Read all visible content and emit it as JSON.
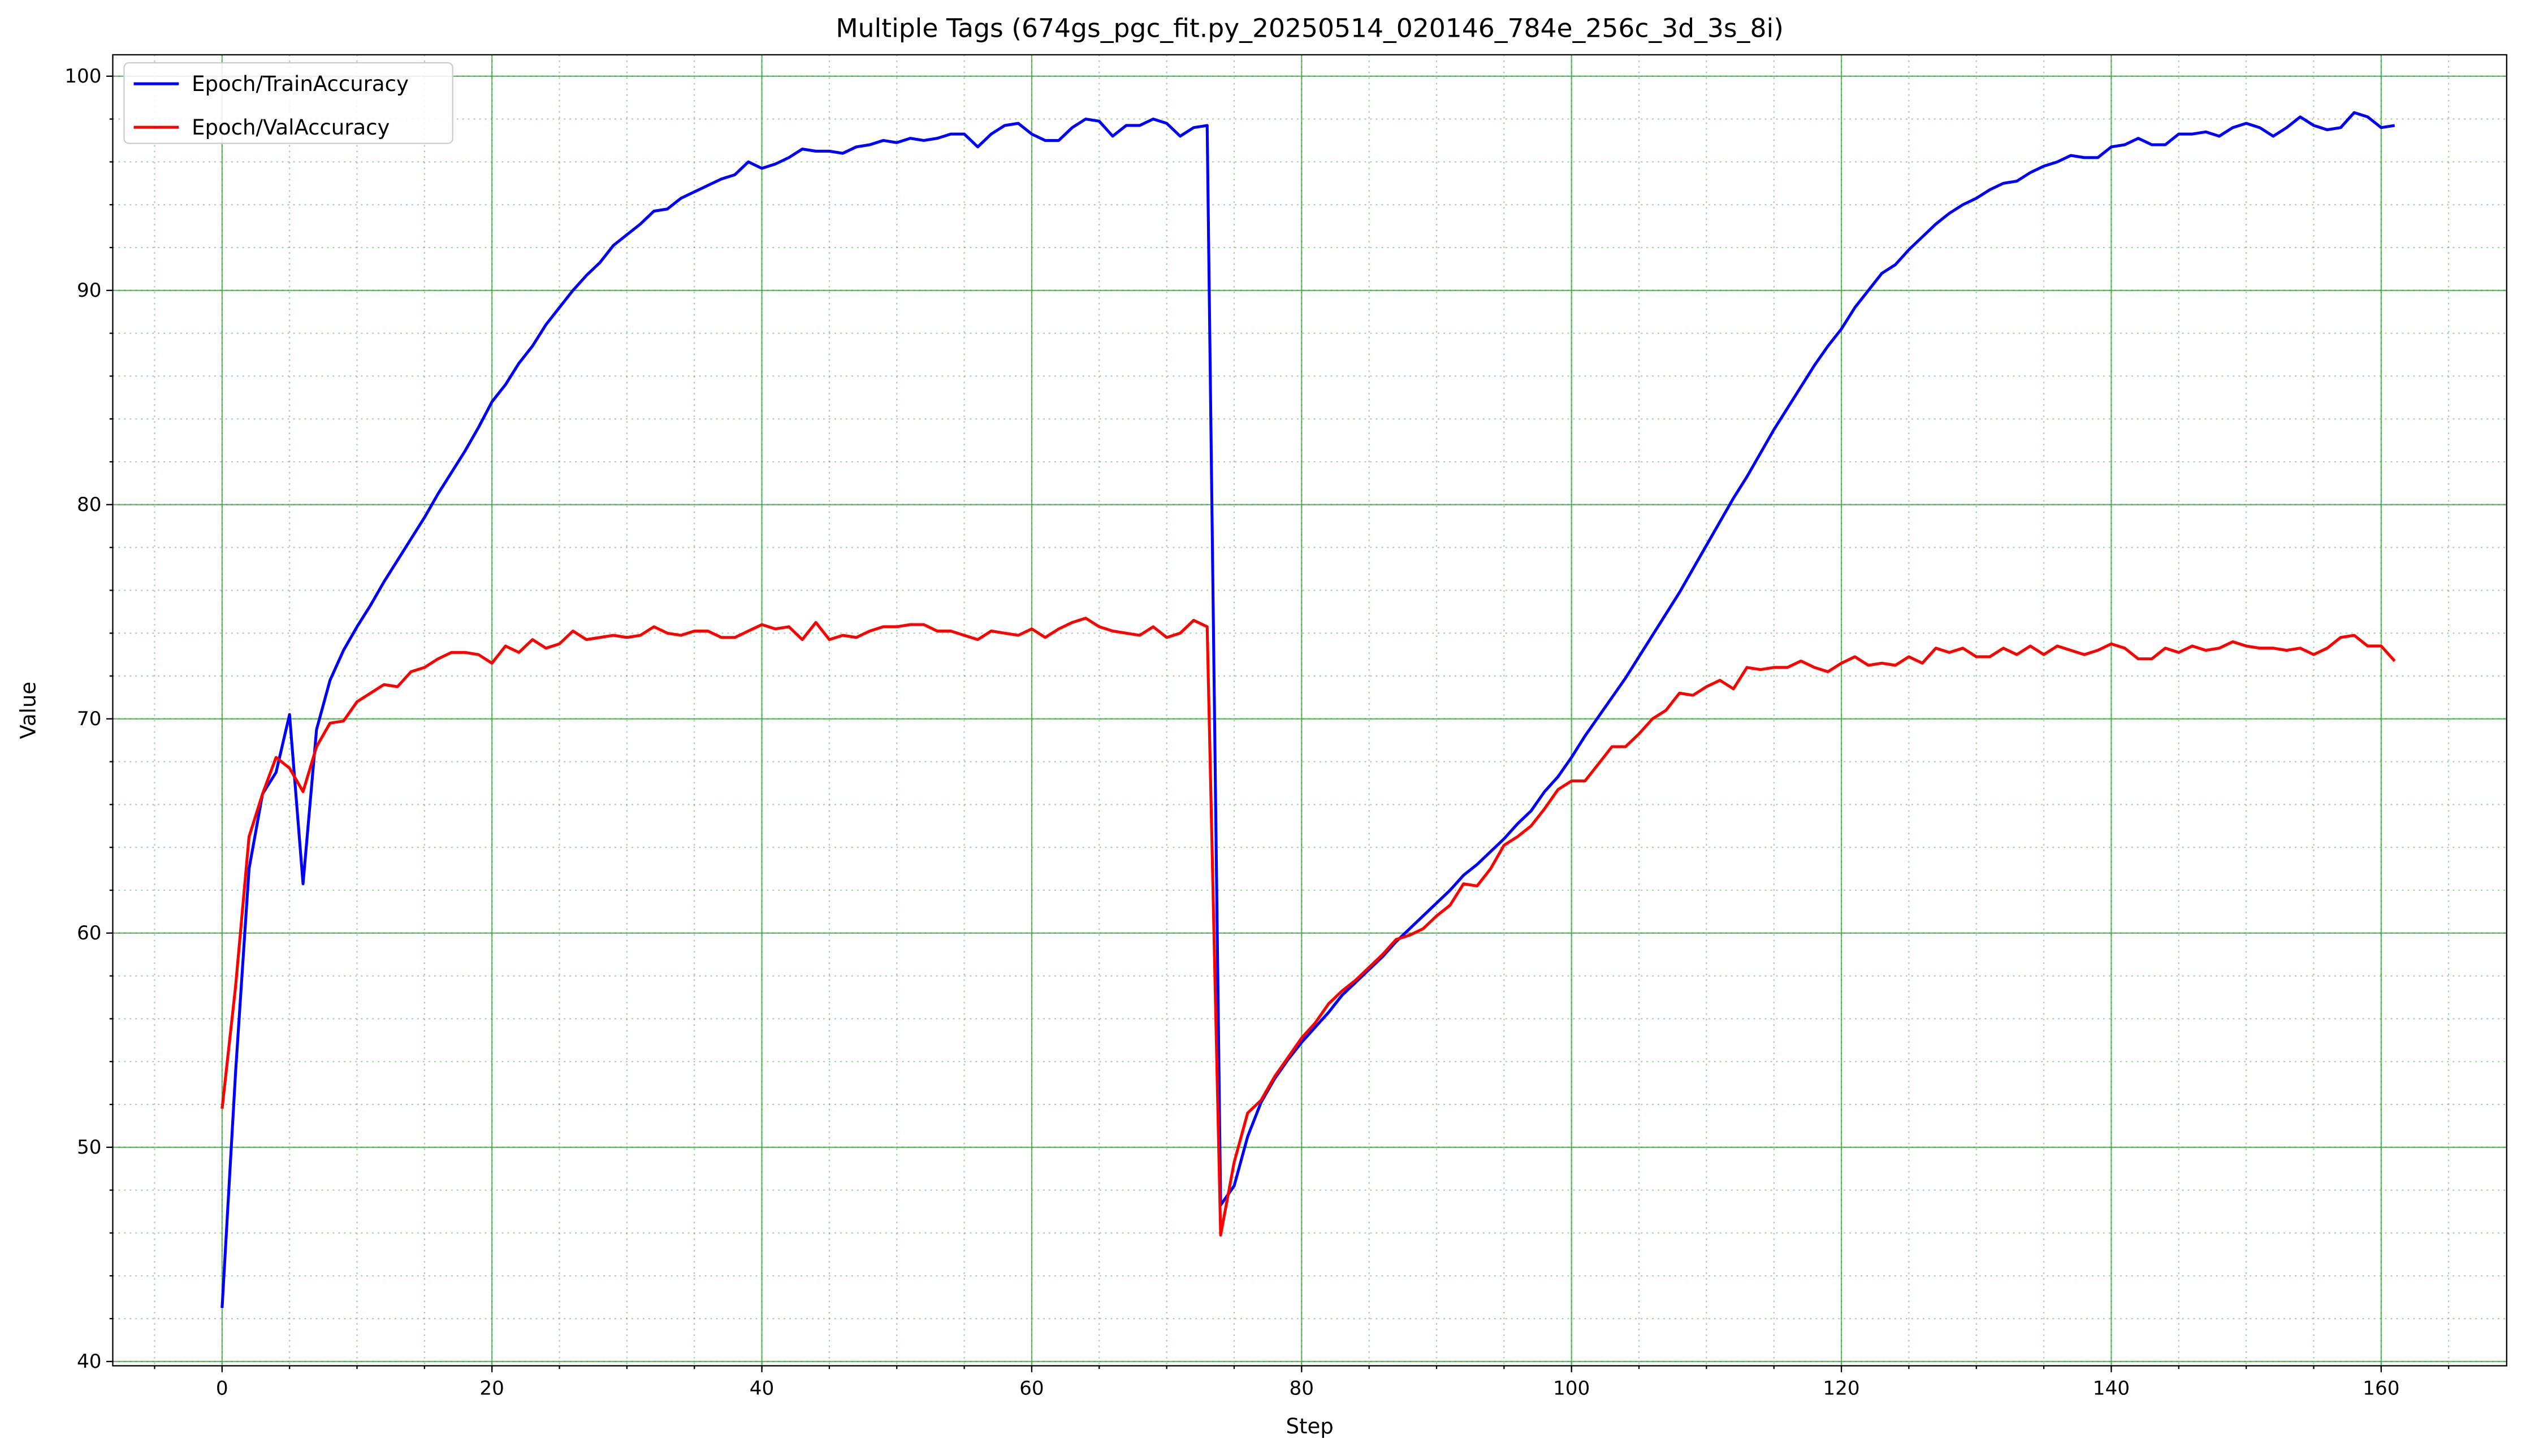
{
  "chart_data": {
    "type": "line",
    "title": "Multiple Tags (674gs_pgc_fit.py_20250514_020146_784e_256c_3d_3s_8i)",
    "x_label": "Step",
    "y_label": "Value",
    "grid": true,
    "minor_grid": true,
    "grid_color": "#2ca02c",
    "legend": "upper left",
    "xlim": [
      -8.1,
      169.3
    ],
    "ylim": [
      39.8,
      101
    ],
    "xticks": [
      0,
      20,
      40,
      60,
      80,
      100,
      120,
      140,
      160
    ],
    "yticks": [
      40,
      50,
      60,
      70,
      80,
      90,
      100
    ],
    "x": [
      0,
      1,
      2,
      3,
      4,
      5,
      6,
      7,
      8,
      9,
      10,
      11,
      12,
      13,
      14,
      15,
      16,
      17,
      18,
      19,
      20,
      21,
      22,
      23,
      24,
      25,
      26,
      27,
      28,
      29,
      30,
      31,
      32,
      33,
      34,
      35,
      36,
      37,
      38,
      39,
      40,
      41,
      42,
      43,
      44,
      45,
      46,
      47,
      48,
      49,
      50,
      51,
      52,
      53,
      54,
      55,
      56,
      57,
      58,
      59,
      60,
      61,
      62,
      63,
      64,
      65,
      66,
      67,
      68,
      69,
      70,
      71,
      72,
      73,
      74,
      75,
      76,
      77,
      78,
      79,
      80,
      81,
      82,
      83,
      84,
      85,
      86,
      87,
      88,
      89,
      90,
      91,
      92,
      93,
      94,
      95,
      96,
      97,
      98,
      99,
      100,
      101,
      102,
      103,
      104,
      105,
      106,
      107,
      108,
      109,
      110,
      111,
      112,
      113,
      114,
      115,
      116,
      117,
      118,
      119,
      120,
      121,
      122,
      123,
      124,
      125,
      126,
      127,
      128,
      129,
      130,
      131,
      132,
      133,
      134,
      135,
      136,
      137,
      138,
      139,
      140,
      141,
      142,
      143,
      144,
      145,
      146,
      147,
      148,
      149,
      150,
      151,
      152,
      153,
      154,
      155,
      156,
      157,
      158,
      159,
      160,
      161
    ],
    "series": [
      {
        "name": "Epoch/TrainAccuracy",
        "color": "#0000ff",
        "values": [
          42.5,
          53.5,
          63,
          66.5,
          67.5,
          70.2,
          62.3,
          69.5,
          71.8,
          73.2,
          74.3,
          75.3,
          76.4,
          77.4,
          78.4,
          79.4,
          80.5,
          81.5,
          82.5,
          83.6,
          84.8,
          85.6,
          86.6,
          87.4,
          88.4,
          89.2,
          90,
          90.7,
          91.3,
          92.1,
          92.6,
          93.1,
          93.7,
          93.8,
          94.3,
          94.6,
          94.9,
          95.2,
          95.4,
          96,
          95.7,
          95.9,
          96.2,
          96.6,
          96.5,
          96.5,
          96.4,
          96.7,
          96.8,
          97,
          96.9,
          97.1,
          97,
          97.1,
          97.3,
          97.3,
          96.7,
          97.3,
          97.7,
          97.8,
          97.3,
          97,
          97,
          97.6,
          98,
          97.9,
          97.2,
          97.7,
          97.7,
          98,
          97.8,
          97.2,
          97.6,
          97.7,
          47.3,
          48.2,
          50.5,
          52.1,
          53.2,
          54.1,
          54.9,
          55.6,
          56.3,
          57.1,
          57.7,
          58.3,
          58.9,
          59.6,
          60.2,
          60.8,
          61.4,
          62,
          62.7,
          63.2,
          63.8,
          64.4,
          65.1,
          65.7,
          66.6,
          67.3,
          68.2,
          69.2,
          70.1,
          71,
          71.9,
          72.9,
          73.9,
          74.9,
          75.9,
          77,
          78.1,
          79.2,
          80.3,
          81.3,
          82.4,
          83.5,
          84.5,
          85.5,
          86.5,
          87.4,
          88.2,
          89.2,
          90,
          90.8,
          91.2,
          91.9,
          92.5,
          93.1,
          93.6,
          94,
          94.3,
          94.7,
          95,
          95.1,
          95.5,
          95.8,
          96,
          96.3,
          96.2,
          96.2,
          96.7,
          96.8,
          97.1,
          96.8,
          96.8,
          97.3,
          97.3,
          97.4,
          97.2,
          97.6,
          97.8,
          97.6,
          97.2,
          97.6,
          98.1,
          97.7,
          97.5,
          97.6,
          98.3,
          98.1,
          97.6,
          97.7
        ]
      },
      {
        "name": "Epoch/ValAccuracy",
        "color": "#ff0000",
        "values": [
          51.8,
          57.5,
          64.5,
          66.5,
          68.2,
          67.7,
          66.6,
          68.7,
          69.8,
          69.9,
          70.8,
          71.2,
          71.6,
          71.5,
          72.2,
          72.4,
          72.8,
          73.1,
          73.1,
          73,
          72.6,
          73.4,
          73.1,
          73.7,
          73.3,
          73.5,
          74.1,
          73.7,
          73.8,
          73.9,
          73.8,
          73.9,
          74.3,
          74,
          73.9,
          74.1,
          74.1,
          73.8,
          73.8,
          74.1,
          74.4,
          74.2,
          74.3,
          73.7,
          74.5,
          73.7,
          73.9,
          73.8,
          74.1,
          74.3,
          74.3,
          74.4,
          74.4,
          74.1,
          74.1,
          73.9,
          73.7,
          74.1,
          74,
          73.9,
          74.2,
          73.8,
          74.2,
          74.5,
          74.7,
          74.3,
          74.1,
          74,
          73.9,
          74.3,
          73.8,
          74,
          74.6,
          74.3,
          45.9,
          49.3,
          51.6,
          52.2,
          53.3,
          54.2,
          55.1,
          55.8,
          56.7,
          57.3,
          57.8,
          58.4,
          59,
          59.7,
          59.9,
          60.2,
          60.8,
          61.3,
          62.3,
          62.2,
          63,
          64.1,
          64.5,
          65,
          65.8,
          66.7,
          67.1,
          67.1,
          67.9,
          68.7,
          68.7,
          69.3,
          70,
          70.4,
          71.2,
          71.1,
          71.5,
          71.8,
          71.4,
          72.4,
          72.3,
          72.4,
          72.4,
          72.7,
          72.4,
          72.2,
          72.6,
          72.9,
          72.5,
          72.6,
          72.5,
          72.9,
          72.6,
          73.3,
          73.1,
          73.3,
          72.9,
          72.9,
          73.3,
          73,
          73.4,
          73,
          73.4,
          73.2,
          73,
          73.2,
          73.5,
          73.3,
          72.8,
          72.8,
          73.3,
          73.1,
          73.4,
          73.2,
          73.3,
          73.6,
          73.4,
          73.3,
          73.3,
          73.2,
          73.3,
          73,
          73.3,
          73.8,
          73.9,
          73.4,
          73.4,
          72.7
        ]
      }
    ]
  }
}
